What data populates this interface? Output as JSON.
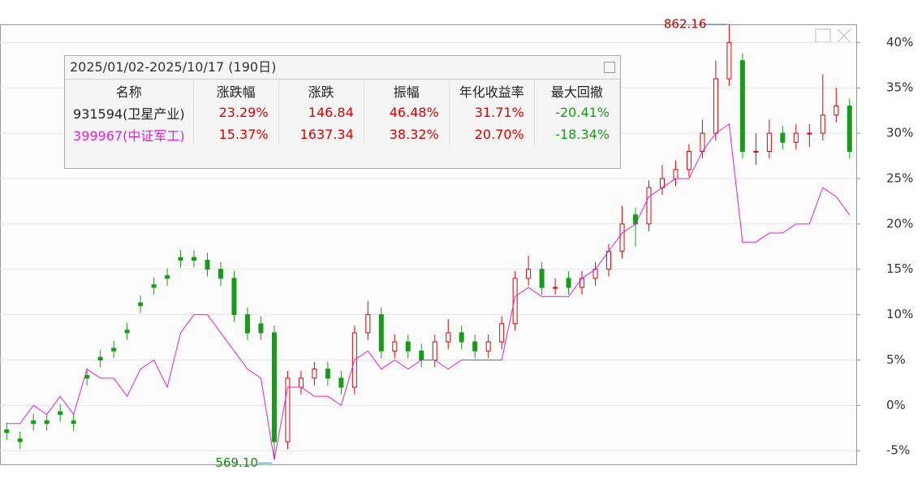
{
  "chart_data": {
    "type": "candlestick",
    "ylim": [
      -6.5,
      42
    ],
    "yticks": [
      {
        "value": -5,
        "label": "-5%"
      },
      {
        "value": 0,
        "label": "0%"
      },
      {
        "value": 5,
        "label": "5%"
      },
      {
        "value": 10,
        "label": "10%"
      },
      {
        "value": 15,
        "label": "15%"
      },
      {
        "value": 20,
        "label": "20%"
      },
      {
        "value": 25,
        "label": "25%"
      },
      {
        "value": 30,
        "label": "30%"
      },
      {
        "value": 35,
        "label": "35%"
      },
      {
        "value": 40,
        "label": "40%"
      }
    ],
    "grid": true,
    "max_label": "862.16",
    "min_label": "569.10",
    "series": [
      {
        "name": "931594(卫星产业)",
        "up_color": "#e00000",
        "down_color": "#1a9a1a",
        "open": [
          -2.7,
          -3.7,
          -1.7,
          -1.7,
          -0.7,
          -1.7,
          3.3,
          5.3,
          6.3,
          8.3,
          11.3,
          13.3,
          14.3,
          16.3,
          16.3,
          16,
          15,
          14,
          10,
          9,
          8,
          -4,
          2,
          3,
          4,
          3,
          2,
          8,
          10,
          6,
          7,
          6,
          5,
          7,
          8,
          7,
          6,
          7,
          9,
          14,
          15,
          13,
          14,
          13,
          14,
          15,
          17,
          21,
          20,
          24,
          25,
          26,
          28,
          30,
          36,
          38,
          28,
          28,
          30,
          29,
          30,
          30,
          32,
          33
        ],
        "close": [
          -3,
          -4,
          -2,
          -2,
          -1,
          -2,
          3,
          5,
          6,
          8,
          11,
          13,
          14,
          16,
          16,
          15,
          14,
          10,
          8,
          8,
          -4,
          3,
          3,
          4,
          3,
          2,
          8,
          10,
          6,
          7,
          6,
          5,
          7,
          8,
          7,
          6,
          7,
          9,
          14,
          15,
          13,
          13,
          13,
          14,
          15,
          17,
          20,
          20,
          24,
          25,
          26,
          28,
          30,
          36,
          40,
          28,
          28,
          30,
          29,
          30,
          30,
          32,
          33,
          28
        ],
        "high": [
          -1.9,
          -2.9,
          -0.9,
          -0.9,
          0.1,
          -0.9,
          4.1,
          6.1,
          7.1,
          9.1,
          12.1,
          14.1,
          15.1,
          17.1,
          17.1,
          16.8,
          15.8,
          14.8,
          10.8,
          9.8,
          8.8,
          3.8,
          3.8,
          4.8,
          4.8,
          3.8,
          8.8,
          11.5,
          10.8,
          7.8,
          7.8,
          6.8,
          7.8,
          9.5,
          8.8,
          7.8,
          7.8,
          9.8,
          14.8,
          16.5,
          15.8,
          14,
          14.8,
          14.8,
          15.8,
          17.8,
          22,
          21.8,
          24.8,
          26.5,
          27,
          28.8,
          31.5,
          38,
          42,
          38.8,
          30,
          31.5,
          30.8,
          31,
          31,
          36.5,
          35,
          33.8
        ],
        "low": [
          -3.8,
          -4.8,
          -2.8,
          -2.8,
          -1.8,
          -2.8,
          2.2,
          4.2,
          5.2,
          7.2,
          10.2,
          12.2,
          13.2,
          15.2,
          15.2,
          14.2,
          13.2,
          9.2,
          7.2,
          7.2,
          -6,
          -4.8,
          1.2,
          2.2,
          2.2,
          1.2,
          1.2,
          7.2,
          5.2,
          5.2,
          5.2,
          4.2,
          4.2,
          6.2,
          6.2,
          5.2,
          5.2,
          6.2,
          8.2,
          13.2,
          12.2,
          12.2,
          12.2,
          12.2,
          13.2,
          14.2,
          16.2,
          17.5,
          19.2,
          23.2,
          24.2,
          25.2,
          27.2,
          29.2,
          35.2,
          27.2,
          26.5,
          27.2,
          28.2,
          28.2,
          28.5,
          29.2,
          31.2,
          27.2
        ]
      },
      {
        "name": "399967(中证军工)",
        "color": "#e020e0",
        "values": [
          -2,
          -2,
          0,
          -1,
          1,
          -1,
          4,
          3,
          3,
          1,
          4,
          5,
          2,
          8,
          10,
          10,
          8,
          6,
          4,
          3,
          -6,
          2,
          2,
          1,
          1,
          0,
          5,
          6,
          4,
          5,
          4,
          5,
          5,
          4,
          5,
          5,
          5,
          5,
          12,
          13,
          12,
          12,
          12,
          14,
          15,
          17,
          19,
          20,
          23,
          24,
          25,
          25,
          28,
          30,
          31,
          18,
          18,
          19,
          19,
          20,
          20,
          24,
          23,
          21
        ]
      }
    ]
  },
  "info_box": {
    "title": "2025/01/02-2025/10/17 (190日)",
    "header": [
      "名称",
      "涨跌幅",
      "涨跌",
      "振幅",
      "年化收益率",
      "最大回撤"
    ],
    "rows": [
      [
        "931594(卫星产业)",
        "23.29%",
        "146.84",
        "46.48%",
        "31.71%",
        "-20.41%"
      ],
      [
        "399967(中证军工)",
        "15.37%",
        "1637.34",
        "38.32%",
        "20.70%",
        "-18.34%"
      ]
    ]
  }
}
